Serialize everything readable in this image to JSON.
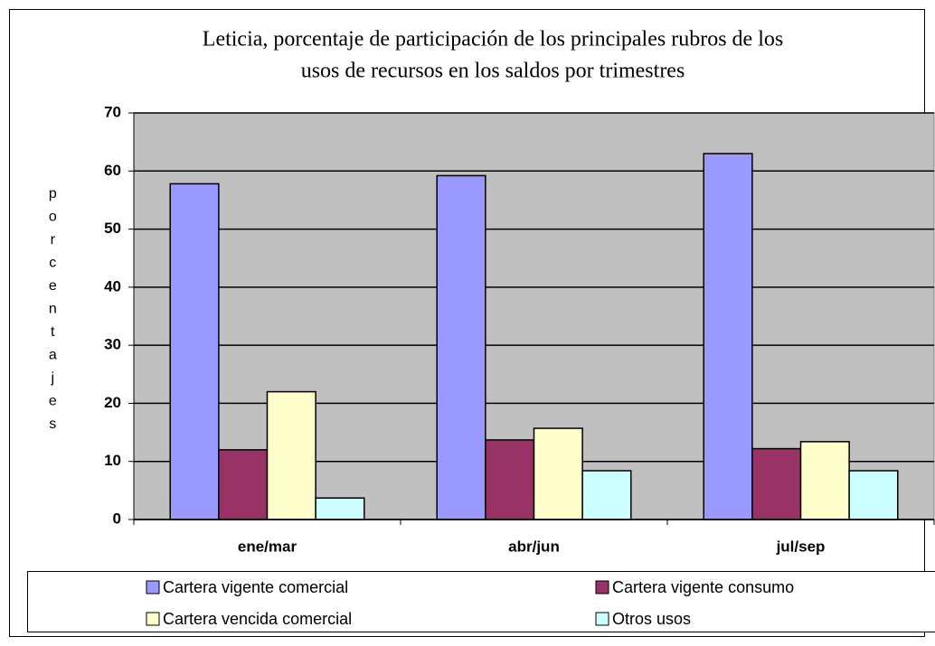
{
  "chart_data": {
    "type": "bar",
    "title": [
      "Leticia, porcentaje de participación de los principales rubros de los",
      "usos  de recursos en los saldos por trimestres"
    ],
    "y_label": "porcentajes",
    "categories": [
      "ene/mar",
      "abr/jun",
      "jul/sep"
    ],
    "series": [
      {
        "name": "Cartera vigente comercial",
        "color": "#9999ff",
        "values": [
          57.8,
          59.2,
          63
        ]
      },
      {
        "name": "Cartera vigente consumo",
        "color": "#993366",
        "values": [
          12,
          13.7,
          12.2
        ]
      },
      {
        "name": "Cartera vencida comercial",
        "color": "#ffffcc",
        "values": [
          22,
          15.7,
          13.4
        ]
      },
      {
        "name": "Otros usos",
        "color": "#ccffff",
        "values": [
          3.7,
          8.4,
          8.4
        ]
      }
    ],
    "ylim": [
      0,
      70
    ],
    "yticks": [
      0,
      10,
      20,
      30,
      40,
      50,
      60,
      70
    ],
    "grid": true,
    "legend": "bottom"
  }
}
